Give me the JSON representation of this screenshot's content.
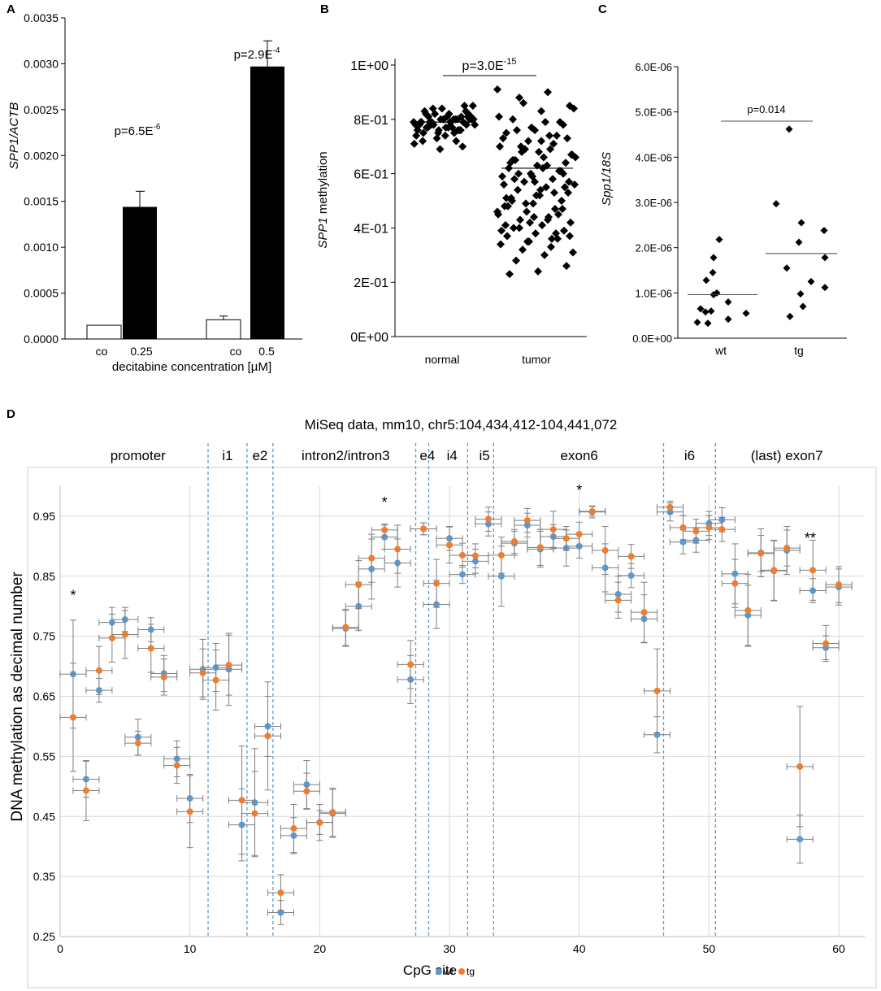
{
  "chart_data": [
    {
      "panel": "A",
      "type": "bar",
      "categories": [
        "co",
        "0.25",
        "co",
        "0.5"
      ],
      "groups": [
        {
          "label_control": "co",
          "label_treated": "0.25",
          "control": 0.00015,
          "treated": 0.00144,
          "treated_err": 0.00017,
          "control_err": 0.0,
          "p_label": "p=6.5E",
          "p_exp": "-6"
        },
        {
          "label_control": "co",
          "label_treated": "0.5",
          "control": 0.00021,
          "treated": 0.00297,
          "treated_err": 0.00028,
          "control_err": 4e-05,
          "p_label": "p=2.9E",
          "p_exp": "-4"
        }
      ],
      "ylabel": "SPP1/ACTB",
      "xlabel": "decitabine concentration [µM]",
      "ylim": [
        0,
        0.0035
      ],
      "yticks": [
        "0.0000",
        "0.0005",
        "0.0010",
        "0.0015",
        "0.0020",
        "0.0025",
        "0.0030",
        "0.0035"
      ],
      "colors": {
        "control": "#ffffff",
        "treated": "#000000"
      }
    },
    {
      "panel": "B",
      "type": "scatter",
      "categories": [
        "normal",
        "tumor"
      ],
      "ylabel": "SPP1 methylation",
      "ylim": [
        0,
        1
      ],
      "yticks": [
        "0E+00",
        "2E-01",
        "4E-01",
        "6E-01",
        "8E-01",
        "1E+00"
      ],
      "p_label": "p=3.0E",
      "p_exp": "-15",
      "medians": [
        0.79,
        0.62
      ],
      "normal": [
        0.79,
        0.8,
        0.78,
        0.81,
        0.77,
        0.82,
        0.83,
        0.8,
        0.79,
        0.76,
        0.75,
        0.78,
        0.8,
        0.84,
        0.85,
        0.79,
        0.77,
        0.81,
        0.74,
        0.72,
        0.7,
        0.69,
        0.76,
        0.8,
        0.82,
        0.78,
        0.77,
        0.79,
        0.8,
        0.81,
        0.83,
        0.85,
        0.84,
        0.78,
        0.76,
        0.73,
        0.71,
        0.75,
        0.79,
        0.8,
        0.82,
        0.77,
        0.78,
        0.8,
        0.79,
        0.81,
        0.76,
        0.74,
        0.72,
        0.78,
        0.8,
        0.79,
        0.81,
        0.82,
        0.77,
        0.75,
        0.79,
        0.8,
        0.78,
        0.76
      ],
      "tumor": [
        0.91,
        0.9,
        0.88,
        0.85,
        0.83,
        0.8,
        0.78,
        0.76,
        0.75,
        0.74,
        0.72,
        0.7,
        0.69,
        0.68,
        0.67,
        0.66,
        0.65,
        0.64,
        0.63,
        0.62,
        0.61,
        0.6,
        0.59,
        0.58,
        0.57,
        0.56,
        0.55,
        0.54,
        0.53,
        0.52,
        0.51,
        0.5,
        0.49,
        0.48,
        0.47,
        0.46,
        0.45,
        0.44,
        0.43,
        0.42,
        0.41,
        0.4,
        0.39,
        0.38,
        0.37,
        0.36,
        0.35,
        0.34,
        0.33,
        0.32,
        0.31,
        0.3,
        0.28,
        0.26,
        0.24,
        0.23,
        0.79,
        0.77,
        0.73,
        0.71,
        0.69,
        0.66,
        0.63,
        0.6,
        0.57,
        0.54,
        0.5,
        0.47,
        0.44,
        0.41,
        0.38,
        0.35,
        0.81,
        0.74,
        0.7,
        0.67,
        0.62,
        0.58,
        0.55,
        0.52,
        0.48,
        0.45,
        0.42,
        0.39,
        0.36,
        0.86,
        0.84,
        0.79,
        0.76,
        0.73,
        0.68,
        0.64,
        0.61,
        0.59,
        0.56,
        0.53,
        0.49,
        0.46,
        0.43,
        0.4,
        0.37,
        0.72,
        0.65,
        0.6,
        0.57,
        0.51
      ],
      "marker": "diamond"
    },
    {
      "panel": "C",
      "type": "scatter",
      "categories": [
        "wt",
        "tg"
      ],
      "ylabel": "Spp1/18S",
      "ylim": [
        0,
        6e-06
      ],
      "yticks": [
        "0.0E+00",
        "1.0E-06",
        "2.0E-06",
        "3.0E-06",
        "4.0E-06",
        "5.0E-06",
        "6.0E-06"
      ],
      "p_label": "p=0.014",
      "medians": [
        9.6e-07,
        1.87e-06
      ],
      "wt": [
        2.18e-06,
        1.78e-06,
        1.45e-06,
        1.28e-06,
        1e-06,
        9.6e-07,
        8e-07,
        6.5e-07,
        6e-07,
        5.5e-07,
        5.8e-07,
        4.2e-07,
        3.5e-07,
        3.3e-07
      ],
      "tg": [
        4.62e-06,
        2.97e-06,
        2.55e-06,
        2.38e-06,
        2.12e-06,
        1.78e-06,
        1.55e-06,
        1.25e-06,
        1.12e-06,
        9.8e-07,
        7e-07,
        4.8e-07
      ],
      "marker": "diamond"
    },
    {
      "panel": "D",
      "type": "scatter",
      "title": "MiSeq data, mm10, chr5:104,434,412-104,441,072",
      "xlabel": "CpG site",
      "ylabel": "DNA methylation as decimal number",
      "xlim": [
        0,
        62
      ],
      "ylim": [
        0.25,
        1.0
      ],
      "xticks": [
        "0",
        "10",
        "20",
        "30",
        "40",
        "50",
        "60"
      ],
      "yticks": [
        "0.25",
        "0.35",
        "0.45",
        "0.55",
        "0.65",
        "0.75",
        "0.85",
        "0.95"
      ],
      "legend": [
        {
          "name": "wt",
          "color": "#5b9bd5"
        },
        {
          "name": "tg",
          "color": "#ed7d31"
        }
      ],
      "regions": [
        {
          "label": "promoter",
          "center": 6
        },
        {
          "label": "i1",
          "center": 12.9
        },
        {
          "label": "e2",
          "center": 15.4
        },
        {
          "label": "intron2/intron3",
          "center": 22
        },
        {
          "label": "e4",
          "center": 28.3
        },
        {
          "label": "i4",
          "center": 30.2
        },
        {
          "label": "i5",
          "center": 32.7
        },
        {
          "label": "exon6",
          "center": 40
        },
        {
          "label": "i6",
          "center": 48.5
        },
        {
          "label": "(last) exon7",
          "center": 56
        }
      ],
      "boundaries": [
        11.4,
        14.4,
        16.4,
        27.4,
        28.4,
        31.4,
        33.4,
        46.5,
        50.5
      ],
      "asterisks": [
        {
          "x": 1,
          "y": 0.81,
          "text": "*"
        },
        {
          "x": 25,
          "y": 0.965,
          "text": "*"
        },
        {
          "x": 40,
          "y": 0.985,
          "text": "*"
        },
        {
          "x": 57.8,
          "y": 0.905,
          "text": "**"
        }
      ],
      "wt": [
        [
          1,
          0.687,
          0.09
        ],
        [
          2,
          0.512,
          0.03
        ],
        [
          3,
          0.66,
          0.02
        ],
        [
          4,
          0.773,
          0.025
        ],
        [
          5,
          0.778,
          0.02
        ],
        [
          6,
          0.582,
          0.03
        ],
        [
          7,
          0.761,
          0.02
        ],
        [
          8,
          0.688,
          0.03
        ],
        [
          9,
          0.546,
          0.03
        ],
        [
          10,
          0.48,
          0.04
        ],
        [
          11,
          0.695,
          0.05
        ],
        [
          12,
          0.698,
          0.04
        ],
        [
          13,
          0.695,
          0.06
        ],
        [
          14,
          0.436,
          0.06
        ],
        [
          15,
          0.473,
          0.09
        ],
        [
          16,
          0.6,
          0.05
        ],
        [
          17,
          0.29,
          0.02
        ],
        [
          18,
          0.418,
          0.03
        ],
        [
          19,
          0.503,
          0.04
        ],
        [
          20,
          0.44,
          0.02
        ],
        [
          21,
          0.455,
          0.04
        ],
        [
          22,
          0.763,
          0.03
        ],
        [
          23,
          0.8,
          0.04
        ],
        [
          24,
          0.862,
          0.05
        ],
        [
          25,
          0.915,
          0.02
        ],
        [
          26,
          0.872,
          0.04
        ],
        [
          27,
          0.678,
          0.04
        ],
        [
          28,
          0.929,
          0.01
        ],
        [
          29,
          0.803,
          0.04
        ],
        [
          30,
          0.913,
          0.02
        ],
        [
          31,
          0.853,
          0.015
        ],
        [
          32,
          0.875,
          0.02
        ],
        [
          33,
          0.937,
          0.02
        ],
        [
          34,
          0.85,
          0.05
        ],
        [
          35,
          0.905,
          0.02
        ],
        [
          36,
          0.935,
          0.02
        ],
        [
          37,
          0.895,
          0.03
        ],
        [
          38,
          0.916,
          0.02
        ],
        [
          39,
          0.897,
          0.03
        ],
        [
          40,
          0.9,
          0.02
        ],
        [
          41,
          0.957,
          0.01
        ],
        [
          42,
          0.864,
          0.04
        ],
        [
          43,
          0.82,
          0.03
        ],
        [
          44,
          0.851,
          0.02
        ],
        [
          45,
          0.779,
          0.04
        ],
        [
          46,
          0.586,
          0.03
        ],
        [
          47,
          0.957,
          0.015
        ],
        [
          48,
          0.907,
          0.02
        ],
        [
          49,
          0.91,
          0.02
        ],
        [
          50,
          0.938,
          0.02
        ],
        [
          51,
          0.944,
          0.02
        ],
        [
          52,
          0.854,
          0.05
        ],
        [
          53,
          0.785,
          0.05
        ],
        [
          54,
          0.889,
          0.04
        ],
        [
          55,
          0.859,
          0.05
        ],
        [
          56,
          0.893,
          0.04
        ],
        [
          57,
          0.412,
          0.04
        ],
        [
          58,
          0.826,
          0.02
        ],
        [
          59,
          0.731,
          0.02
        ],
        [
          60,
          0.832,
          0.03
        ]
      ],
      "tg": [
        [
          1,
          0.615,
          0.09
        ],
        [
          2,
          0.493,
          0.05
        ],
        [
          3,
          0.693,
          0.04
        ],
        [
          4,
          0.747,
          0.04
        ],
        [
          5,
          0.753,
          0.04
        ],
        [
          6,
          0.572,
          0.02
        ],
        [
          7,
          0.73,
          0.04
        ],
        [
          8,
          0.682,
          0.03
        ],
        [
          9,
          0.535,
          0.03
        ],
        [
          10,
          0.458,
          0.06
        ],
        [
          11,
          0.689,
          0.04
        ],
        [
          12,
          0.677,
          0.05
        ],
        [
          13,
          0.702,
          0.05
        ],
        [
          14,
          0.477,
          0.09
        ],
        [
          15,
          0.455,
          0.07
        ],
        [
          16,
          0.584,
          0.09
        ],
        [
          17,
          0.323,
          0.03
        ],
        [
          18,
          0.43,
          0.04
        ],
        [
          19,
          0.492,
          0.03
        ],
        [
          20,
          0.44,
          0.03
        ],
        [
          21,
          0.457,
          0.04
        ],
        [
          22,
          0.765,
          0.03
        ],
        [
          23,
          0.836,
          0.04
        ],
        [
          24,
          0.88,
          0.04
        ],
        [
          25,
          0.927,
          0.01
        ],
        [
          26,
          0.895,
          0.04
        ],
        [
          27,
          0.703,
          0.04
        ],
        [
          28,
          0.929,
          0.01
        ],
        [
          29,
          0.838,
          0.04
        ],
        [
          30,
          0.902,
          0.03
        ],
        [
          31,
          0.885,
          0.02
        ],
        [
          32,
          0.884,
          0.02
        ],
        [
          33,
          0.945,
          0.02
        ],
        [
          34,
          0.885,
          0.03
        ],
        [
          35,
          0.908,
          0.02
        ],
        [
          36,
          0.943,
          0.02
        ],
        [
          37,
          0.898,
          0.03
        ],
        [
          38,
          0.928,
          0.03
        ],
        [
          39,
          0.913,
          0.02
        ],
        [
          40,
          0.92,
          0.02
        ],
        [
          41,
          0.958,
          0.008
        ],
        [
          42,
          0.893,
          0.04
        ],
        [
          43,
          0.81,
          0.03
        ],
        [
          44,
          0.883,
          0.02
        ],
        [
          45,
          0.79,
          0.05
        ],
        [
          46,
          0.659,
          0.07
        ],
        [
          47,
          0.965,
          0.01
        ],
        [
          48,
          0.931,
          0.02
        ],
        [
          49,
          0.925,
          0.02
        ],
        [
          50,
          0.931,
          0.02
        ],
        [
          51,
          0.928,
          0.02
        ],
        [
          52,
          0.838,
          0.04
        ],
        [
          53,
          0.793,
          0.06
        ],
        [
          54,
          0.888,
          0.03
        ],
        [
          55,
          0.86,
          0.05
        ],
        [
          56,
          0.897,
          0.03
        ],
        [
          57,
          0.533,
          0.1
        ],
        [
          58,
          0.86,
          0.05
        ],
        [
          59,
          0.738,
          0.03
        ],
        [
          60,
          0.836,
          0.03
        ]
      ]
    }
  ]
}
